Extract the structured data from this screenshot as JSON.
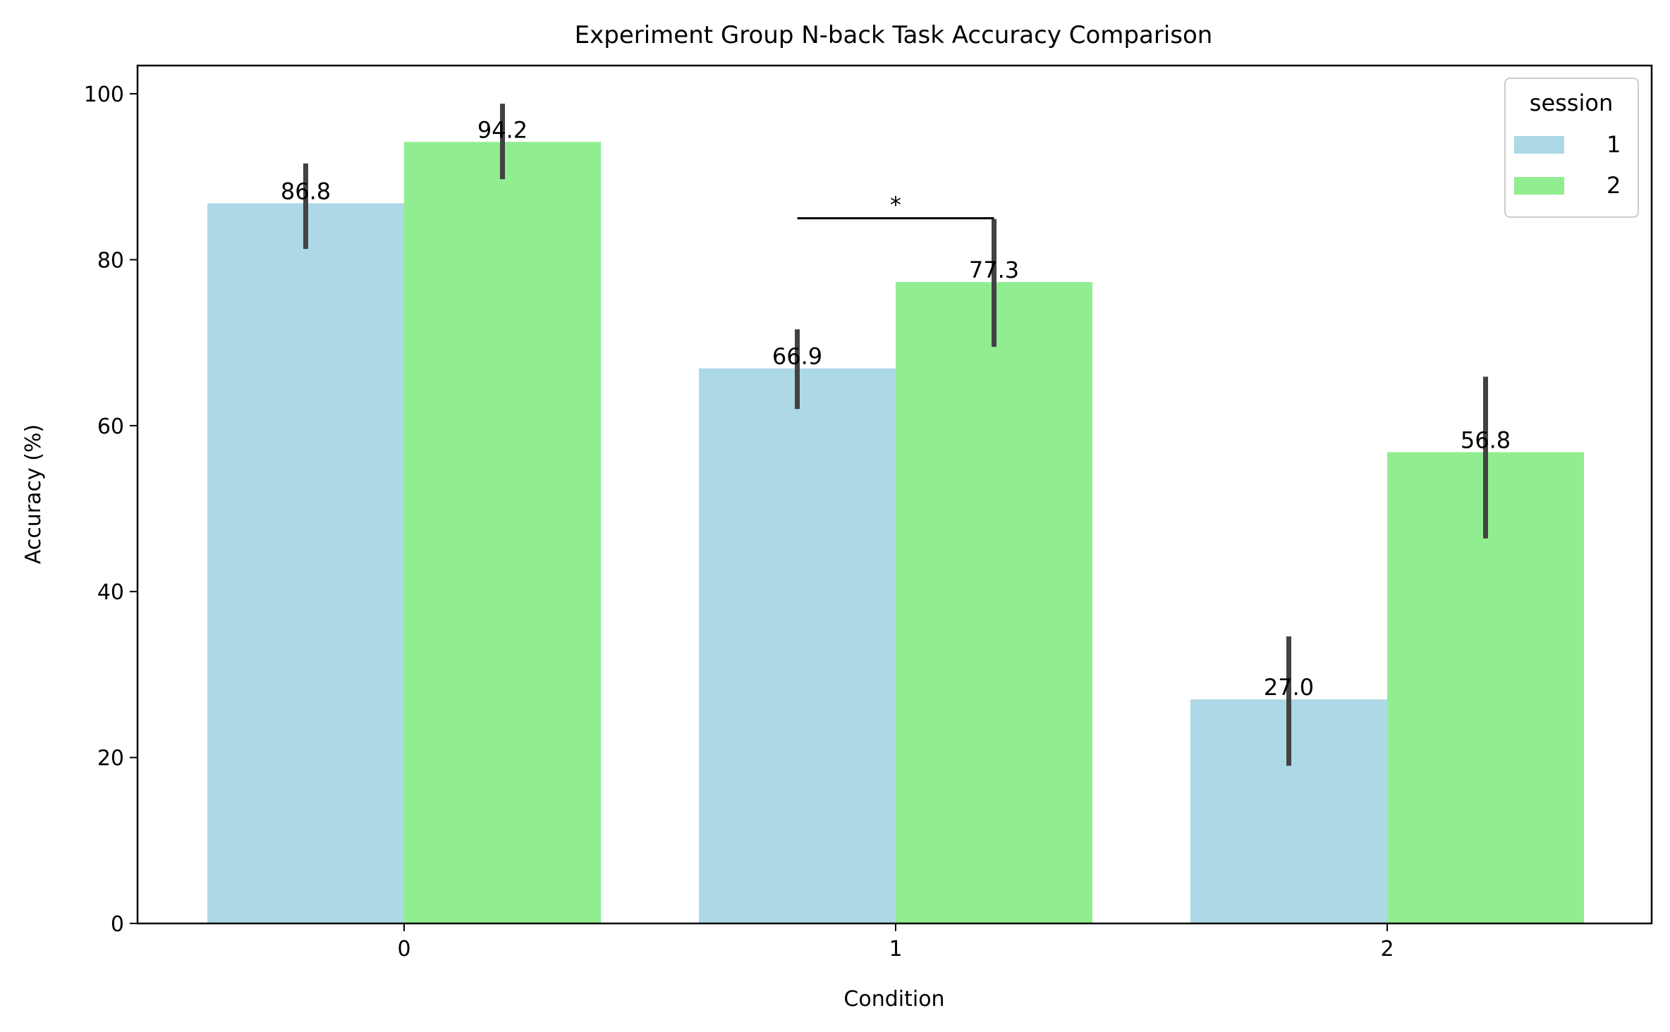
{
  "chart_data": {
    "type": "bar",
    "title": "Experiment Group N-back Task Accuracy Comparison",
    "xlabel": "Condition",
    "ylabel": "Accuracy (%)",
    "categories": [
      "0",
      "1",
      "2"
    ],
    "ylim": [
      0,
      103.4
    ],
    "yticks": [
      0,
      20,
      40,
      60,
      80,
      100
    ],
    "grid": false,
    "legend": {
      "title": "session",
      "placement": "top-right"
    },
    "series": [
      {
        "name": "1",
        "color": "#add8e6",
        "values": [
          86.8,
          66.9,
          27.0
        ],
        "labels": [
          "86.8",
          "66.9",
          "27.0"
        ],
        "ci_low": [
          81.3,
          62.0,
          19.0
        ],
        "ci_high": [
          91.6,
          71.6,
          34.6
        ]
      },
      {
        "name": "2",
        "color": "#90ee90",
        "values": [
          94.2,
          77.3,
          56.8
        ],
        "labels": [
          "94.2",
          "77.3",
          "56.8"
        ],
        "ci_low": [
          89.7,
          69.5,
          46.4
        ],
        "ci_high": [
          98.8,
          84.9,
          65.9
        ]
      }
    ],
    "annotations": [
      {
        "type": "significance",
        "text": "*",
        "category": "1",
        "y": 85.0
      }
    ]
  }
}
